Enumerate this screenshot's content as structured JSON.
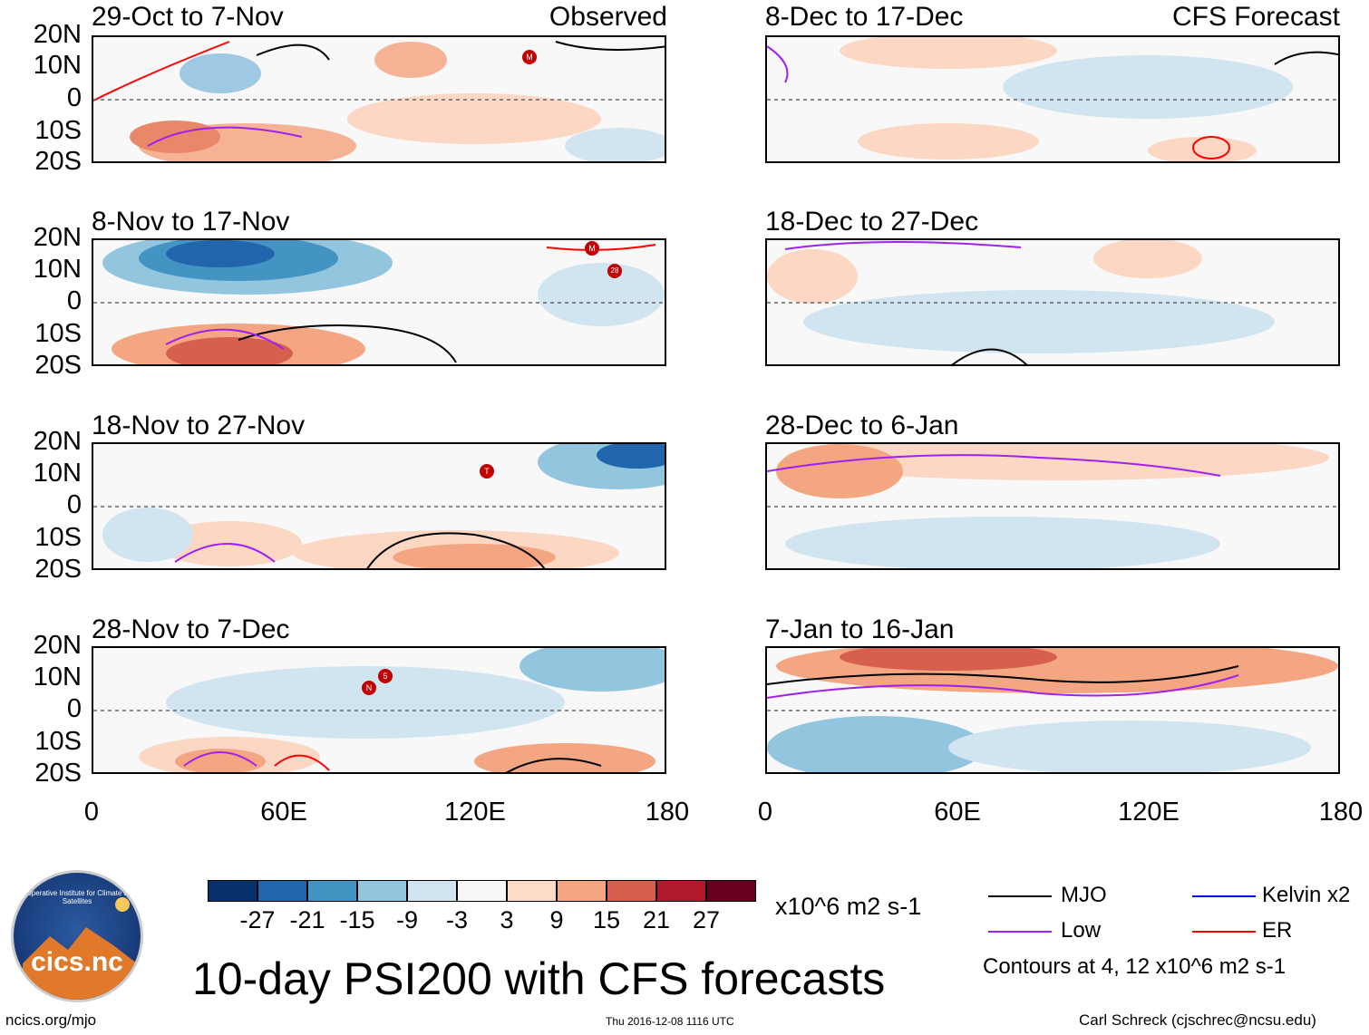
{
  "panels": [
    {
      "title": "29-Oct to 7-Nov",
      "tag": "Observed"
    },
    {
      "title": "8-Nov to 17-Nov",
      "tag": ""
    },
    {
      "title": "18-Nov to 27-Nov",
      "tag": ""
    },
    {
      "title": "28-Nov to 7-Dec",
      "tag": ""
    },
    {
      "title": "8-Dec to 17-Dec",
      "tag": "CFS Forecast"
    },
    {
      "title": "18-Dec to 27-Dec",
      "tag": ""
    },
    {
      "title": "28-Dec to 6-Jan",
      "tag": ""
    },
    {
      "title": "7-Jan to 16-Jan",
      "tag": ""
    }
  ],
  "y_axis": [
    "20N",
    "10N",
    "0",
    "10S",
    "20S"
  ],
  "x_axis": [
    "0",
    "60E",
    "120E",
    "180"
  ],
  "colorbar": {
    "labels": [
      "-27",
      "-21",
      "-15",
      "-9",
      "-3",
      "3",
      "9",
      "15",
      "21",
      "27"
    ],
    "colors": [
      "#08306b",
      "#2166ac",
      "#4393c3",
      "#92c5de",
      "#d1e5f0",
      "#f7f7f7",
      "#fddbc7",
      "#f4a582",
      "#d6604d",
      "#b2182b",
      "#67001f"
    ],
    "units": "x10^6 m2 s-1"
  },
  "legend": {
    "mjo": {
      "label": "MJO",
      "color": "#000000"
    },
    "kelvin": {
      "label": "Kelvin x2",
      "color": "#0000ff"
    },
    "low": {
      "label": "Low",
      "color": "#a020f0"
    },
    "er": {
      "label": "ER",
      "color": "#ff0000"
    },
    "contours_note": "Contours at 4, 12 x10^6 m2 s-1"
  },
  "logo": {
    "text": "cics.nc",
    "ring_text": "Cooperative Institute for Climate and Satellites"
  },
  "main_title": "10-day PSI200 with CFS forecasts",
  "footer": {
    "left": "ncics.org/mjo",
    "center": "Thu 2016-12-08 1116 UTC",
    "right": "Carl Schreck (cjschrec@ncsu.edu)"
  },
  "storm_markers": [
    {
      "panel": 0,
      "label": "M"
    },
    {
      "panel": 1,
      "label": "M"
    },
    {
      "panel": 1,
      "label": "28"
    },
    {
      "panel": 2,
      "label": "T"
    },
    {
      "panel": 3,
      "label": "N"
    },
    {
      "panel": 3,
      "label": "5"
    }
  ]
}
